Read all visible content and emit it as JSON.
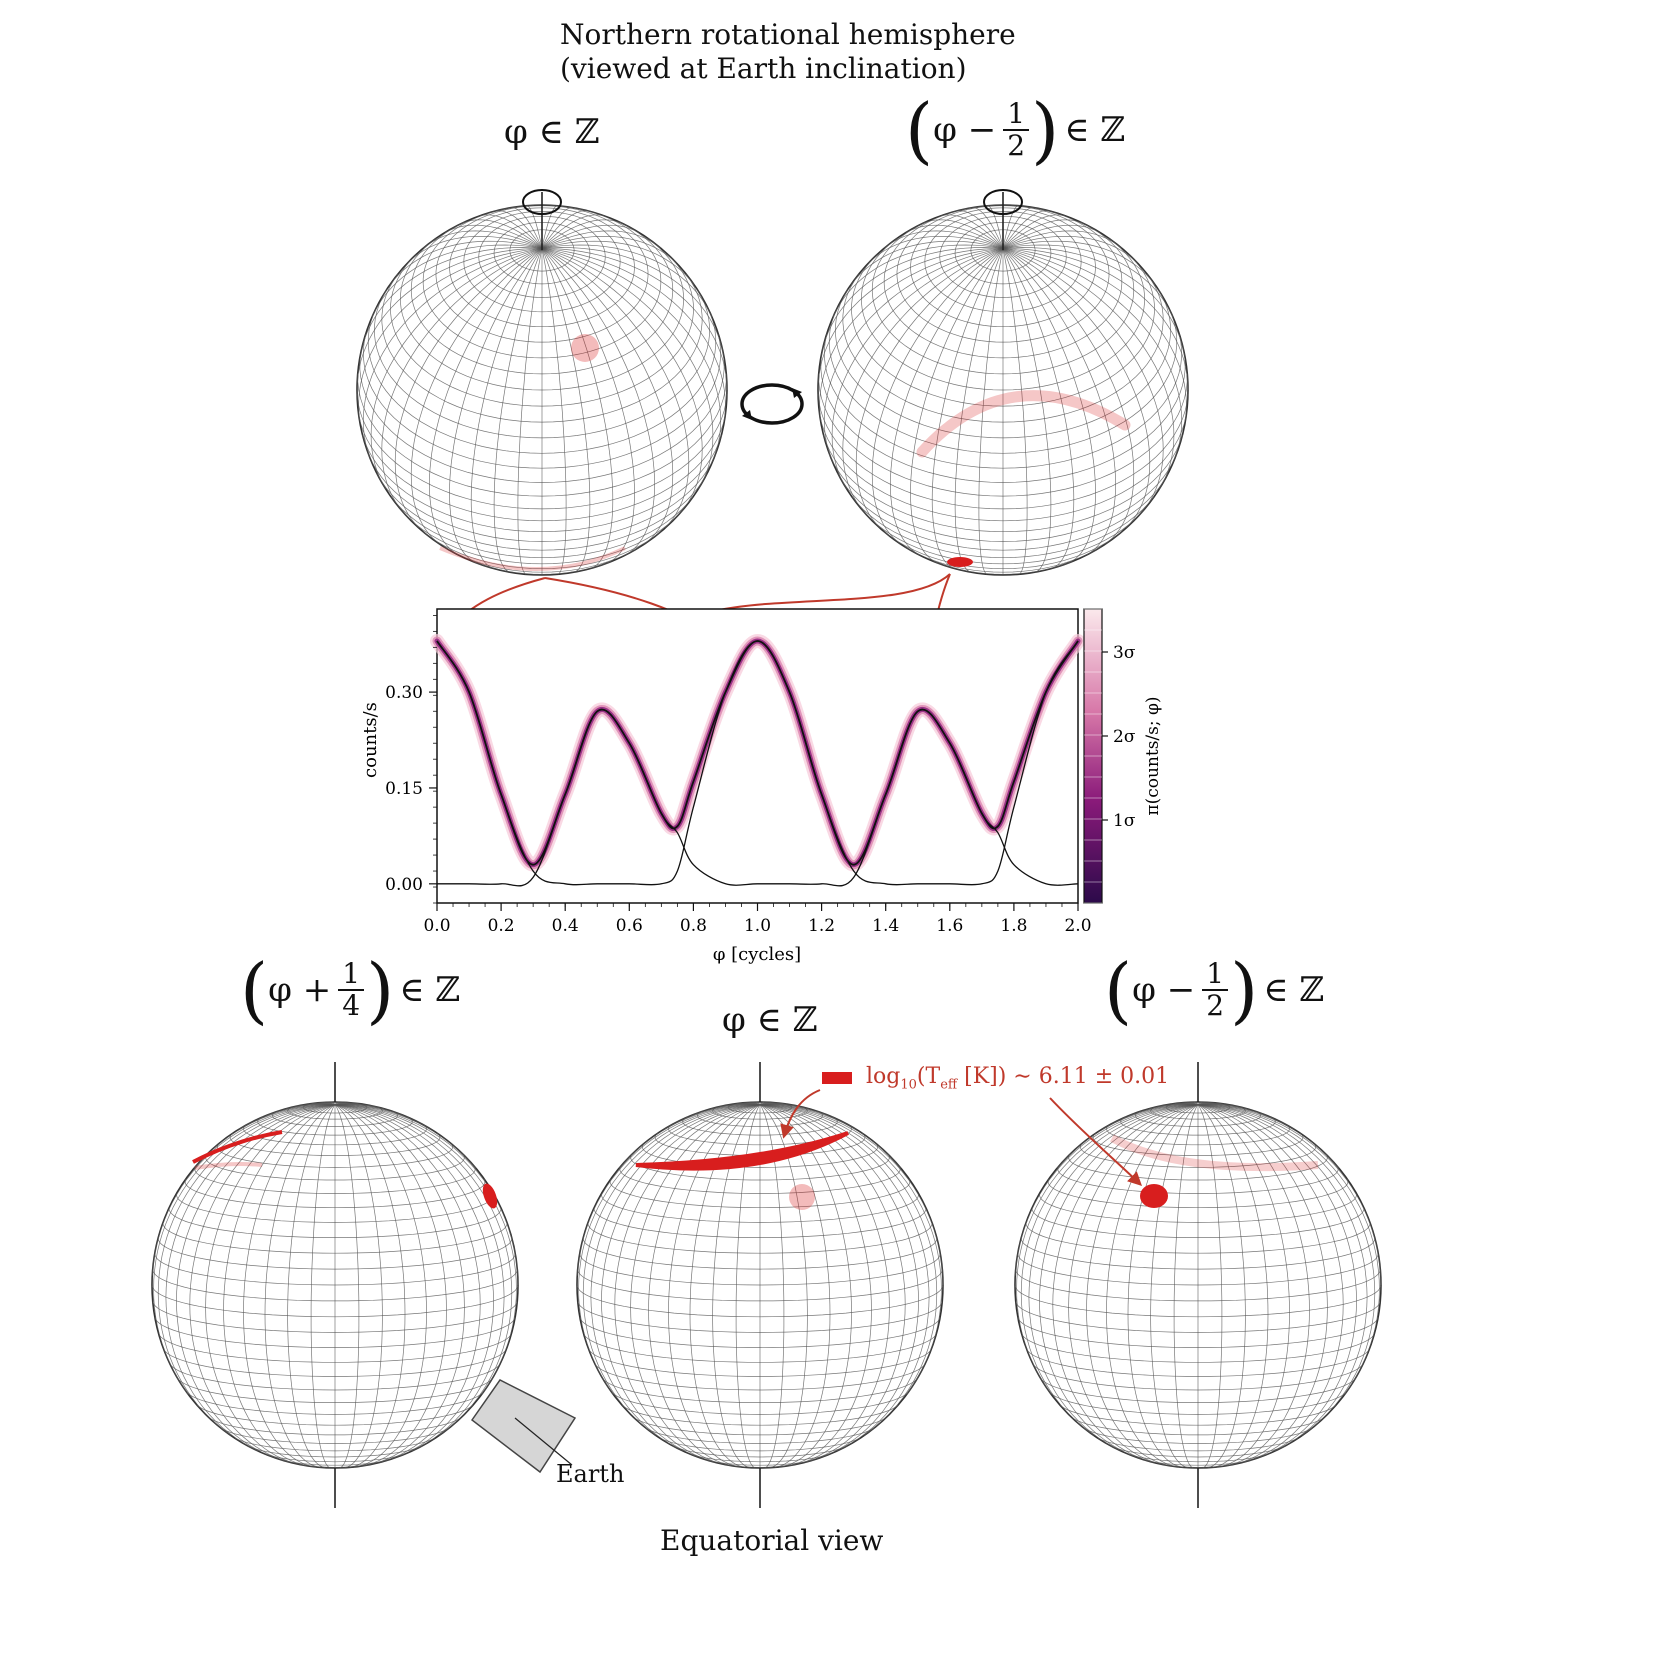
{
  "figure": {
    "title_line1": "Northern rotational hemisphere",
    "title_line2": "(viewed at Earth inclination)",
    "bottom_caption": "Equatorial view",
    "earth_label": "Earth",
    "legend": {
      "prefix": "log",
      "sub": "10",
      "body": "(T",
      "eff": "eff",
      "unit": " [K]) ∼ 6.11 ± 0.01"
    },
    "phases": {
      "top_left": {
        "pre": "φ ∈ ℤ"
      },
      "top_right": {
        "lhs": "φ −",
        "num": "1",
        "den": "2",
        "rhs": "∈ ℤ"
      },
      "bottom_left": {
        "lhs": "φ +",
        "num": "1",
        "den": "4",
        "rhs": "∈ ℤ"
      },
      "bottom_center": {
        "pre": "φ ∈ ℤ"
      },
      "bottom_right": {
        "lhs": "φ −",
        "num": "1",
        "den": "2",
        "rhs": "∈ ℤ"
      }
    },
    "colors": {
      "spot": "#d81e1e",
      "arrow": "#c0392b",
      "grid": "#555555",
      "curve": "#111111"
    }
  },
  "chart_data": {
    "type": "line",
    "xlabel": "φ [cycles]",
    "ylabel": "counts/s",
    "xlim": [
      0.0,
      2.0
    ],
    "ylim": [
      -0.03,
      0.43
    ],
    "xticks": [
      "0.0",
      "0.2",
      "0.4",
      "0.6",
      "0.8",
      "1.0",
      "1.2",
      "1.4",
      "1.6",
      "1.8",
      "2.0"
    ],
    "yticks": [
      "0.00",
      "0.15",
      "0.30"
    ],
    "colorbar_label": "π(counts/s; φ)",
    "colorbar_ticks": [
      "1σ",
      "2σ",
      "3σ"
    ],
    "series": [
      {
        "x": [
          0.0,
          0.1,
          0.2,
          0.3,
          0.4,
          0.5,
          0.6,
          0.7,
          0.75,
          0.8,
          0.9,
          1.0,
          1.1,
          1.2,
          1.3,
          1.4,
          1.5,
          1.6,
          1.7,
          1.75,
          1.8,
          1.9,
          2.0
        ],
        "values": [
          0.38,
          0.3,
          0.14,
          0.03,
          0.14,
          0.27,
          0.22,
          0.11,
          0.09,
          0.16,
          0.3,
          0.38,
          0.3,
          0.14,
          0.03,
          0.14,
          0.27,
          0.22,
          0.11,
          0.09,
          0.16,
          0.3,
          0.38
        ]
      },
      {
        "x": [
          0.0,
          0.1,
          0.2,
          0.3,
          0.4,
          0.5,
          0.6,
          0.7,
          0.75,
          0.8,
          0.9,
          1.0,
          1.1,
          1.2,
          1.3,
          1.4,
          1.5,
          1.6,
          1.7,
          1.75,
          1.8,
          1.9,
          2.0
        ],
        "values": [
          0.38,
          0.3,
          0.14,
          0.02,
          0.0,
          0.0,
          0.0,
          0.0,
          0.02,
          0.12,
          0.3,
          0.38,
          0.3,
          0.14,
          0.02,
          0.0,
          0.0,
          0.0,
          0.0,
          0.02,
          0.12,
          0.3,
          0.38
        ]
      },
      {
        "x": [
          0.0,
          0.1,
          0.2,
          0.3,
          0.4,
          0.5,
          0.6,
          0.7,
          0.75,
          0.8,
          0.9,
          1.0,
          1.1,
          1.2,
          1.3,
          1.4,
          1.5,
          1.6,
          1.7,
          1.75,
          1.8,
          1.9,
          2.0
        ],
        "values": [
          0.0,
          0.0,
          0.0,
          0.01,
          0.14,
          0.27,
          0.22,
          0.11,
          0.08,
          0.03,
          0.0,
          0.0,
          0.0,
          0.0,
          0.01,
          0.14,
          0.27,
          0.22,
          0.11,
          0.08,
          0.03,
          0.0,
          0.0
        ]
      }
    ]
  }
}
